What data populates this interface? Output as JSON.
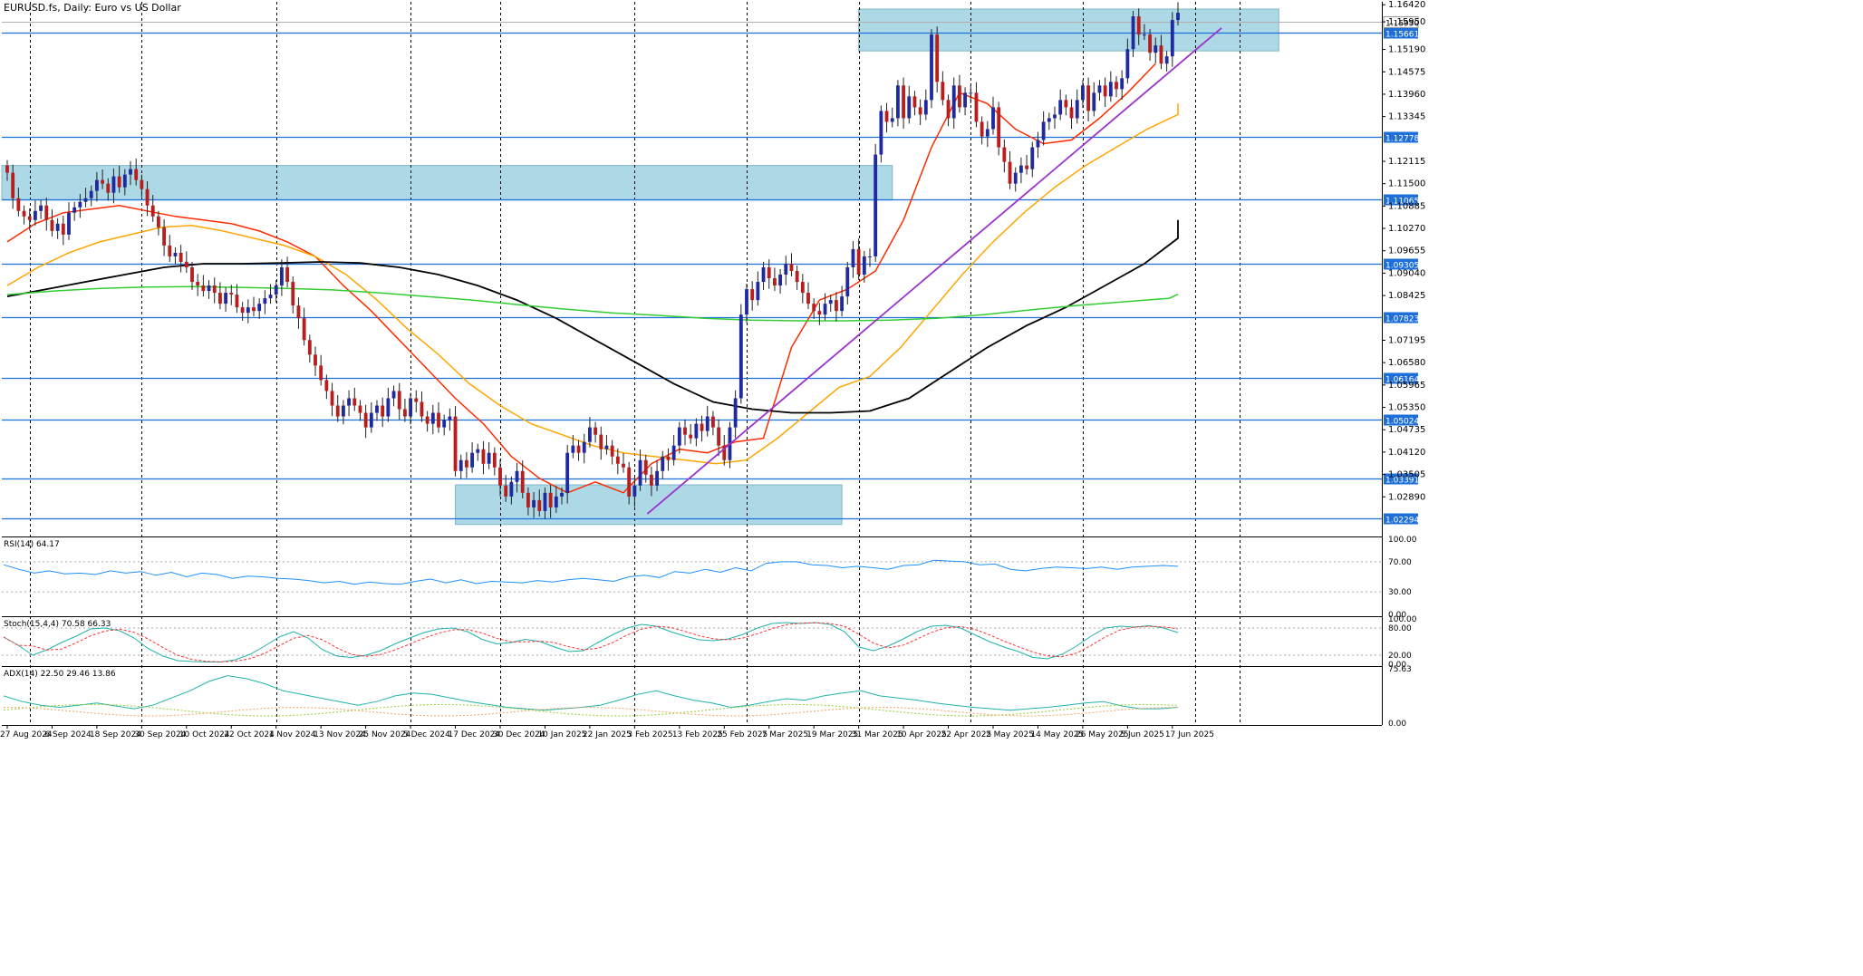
{
  "chart_data": {
    "type": "candlestick",
    "title": "EURUSD.fs, Daily:  Euro vs US Dollar",
    "ylim": [
      1.018,
      1.165
    ],
    "y_ticks": [
      "1.16420",
      "1.15950",
      "1.15190",
      "1.14575",
      "1.13960",
      "1.13345",
      "1.12730",
      "1.12115",
      "1.11500",
      "1.10885",
      "1.10270",
      "1.09655",
      "1.09040",
      "1.08425",
      "1.07810",
      "1.07195",
      "1.06580",
      "1.05965",
      "1.05350",
      "1.04735",
      "1.04120",
      "1.03505",
      "1.02890",
      "1.02294"
    ],
    "x_labels": [
      {
        "text": "27 Aug 2024",
        "idx": 0
      },
      {
        "text": "6 Sep 2024",
        "idx": 8
      },
      {
        "text": "18 Sep 2024",
        "idx": 16
      },
      {
        "text": "30 Sep 2024",
        "idx": 24
      },
      {
        "text": "10 Oct 2024",
        "idx": 32
      },
      {
        "text": "22 Oct 2024",
        "idx": 40
      },
      {
        "text": "1 Nov 2024",
        "idx": 48
      },
      {
        "text": "13 Nov 2024",
        "idx": 56
      },
      {
        "text": "25 Nov 2024",
        "idx": 64
      },
      {
        "text": "5 Dec 2024",
        "idx": 72
      },
      {
        "text": "17 Dec 2024",
        "idx": 80
      },
      {
        "text": "30 Dec 2024",
        "idx": 88
      },
      {
        "text": "10 Jan 2025",
        "idx": 96
      },
      {
        "text": "22 Jan 2025",
        "idx": 104
      },
      {
        "text": "3 Feb 2025",
        "idx": 112
      },
      {
        "text": "13 Feb 2025",
        "idx": 120
      },
      {
        "text": "25 Feb 2025",
        "idx": 128
      },
      {
        "text": "7 Mar 2025",
        "idx": 136
      },
      {
        "text": "19 Mar 2025",
        "idx": 144
      },
      {
        "text": "31 Mar 2025",
        "idx": 152
      },
      {
        "text": "10 Apr 2025",
        "idx": 160
      },
      {
        "text": "22 Apr 2025",
        "idx": 168
      },
      {
        "text": "2 May 2025",
        "idx": 176
      },
      {
        "text": "14 May 2025",
        "idx": 184
      },
      {
        "text": "26 May 2025",
        "idx": 192
      },
      {
        "text": "5 Jun 2025",
        "idx": 200
      },
      {
        "text": "17 Jun 2025",
        "idx": 208
      }
    ],
    "vlines_idx": [
      4,
      24,
      48,
      72,
      88,
      112,
      132,
      152,
      172,
      192,
      212,
      220
    ],
    "closes": [
      1.118,
      1.111,
      1.1075,
      1.106,
      1.105,
      1.1075,
      1.109,
      1.105,
      1.102,
      1.104,
      1.101,
      1.107,
      1.1085,
      1.11,
      1.111,
      1.113,
      1.116,
      1.115,
      1.1125,
      1.117,
      1.114,
      1.1175,
      1.119,
      1.116,
      1.1135,
      1.109,
      1.106,
      1.103,
      1.098,
      1.095,
      1.096,
      1.0935,
      1.092,
      1.088,
      1.087,
      1.0855,
      1.087,
      1.085,
      1.082,
      1.085,
      1.0845,
      1.081,
      1.0795,
      1.081,
      1.08,
      1.082,
      1.0835,
      1.0845,
      1.087,
      1.092,
      1.088,
      1.0815,
      1.078,
      1.072,
      1.068,
      1.065,
      1.061,
      1.058,
      1.054,
      1.051,
      1.054,
      1.056,
      1.054,
      1.052,
      1.048,
      1.052,
      1.054,
      1.051,
      1.056,
      1.058,
      1.053,
      1.051,
      1.056,
      1.055,
      1.051,
      1.049,
      1.052,
      1.048,
      1.05,
      1.051,
      1.036,
      1.039,
      1.037,
      1.041,
      1.042,
      1.038,
      1.041,
      1.037,
      1.032,
      1.029,
      1.033,
      1.036,
      1.03,
      1.026,
      1.028,
      1.025,
      1.03,
      1.026,
      1.029,
      1.03,
      1.041,
      1.043,
      1.041,
      1.044,
      1.048,
      1.046,
      1.042,
      1.043,
      1.04,
      1.038,
      1.037,
      1.029,
      1.032,
      1.039,
      1.035,
      1.032,
      1.036,
      1.04,
      1.039,
      1.043,
      1.048,
      1.046,
      1.045,
      1.049,
      1.047,
      1.051,
      1.048,
      1.043,
      1.039,
      1.048,
      1.056,
      1.079,
      1.086,
      1.083,
      1.088,
      1.092,
      1.089,
      1.087,
      1.09,
      1.093,
      1.091,
      1.088,
      1.085,
      1.082,
      1.08,
      1.079,
      1.082,
      1.083,
      1.08,
      1.084,
      1.092,
      1.097,
      1.09,
      1.095,
      1.095,
      1.123,
      1.135,
      1.132,
      1.133,
      1.142,
      1.133,
      1.139,
      1.136,
      1.134,
      1.138,
      1.156,
      1.143,
      1.138,
      1.133,
      1.142,
      1.136,
      1.14,
      1.14,
      1.132,
      1.128,
      1.13,
      1.136,
      1.125,
      1.121,
      1.115,
      1.118,
      1.12,
      1.119,
      1.125,
      1.127,
      1.132,
      1.133,
      1.134,
      1.138,
      1.136,
      1.133,
      1.138,
      1.142,
      1.135,
      1.14,
      1.142,
      1.139,
      1.143,
      1.141,
      1.144,
      1.152,
      1.161,
      1.156,
      1.156,
      1.151,
      1.153,
      1.148,
      1.15,
      1.16,
      1.162
    ],
    "series": [
      {
        "name": "MA red",
        "color": "#ff2a00",
        "values": [
          1.099,
          1.104,
          1.107,
          1.108,
          1.109,
          1.1075,
          1.106,
          1.105,
          1.104,
          1.102,
          1.099,
          1.095,
          1.087,
          1.08,
          1.072,
          1.064,
          1.056,
          1.049,
          1.04,
          1.034,
          1.03,
          1.033,
          1.03,
          1.038,
          1.042,
          1.041,
          1.044,
          1.045,
          1.07,
          1.083,
          1.086,
          1.091,
          1.105,
          1.125,
          1.14,
          1.137,
          1.13,
          1.126,
          1.127,
          1.133,
          1.14,
          1.148
        ],
        "start_idx": 0,
        "step": 5
      },
      {
        "name": "MA orange",
        "color": "#ffa500",
        "values": [
          1.087,
          1.092,
          1.096,
          1.099,
          1.101,
          1.103,
          1.1035,
          1.102,
          1.1,
          1.098,
          1.095,
          1.09,
          1.083,
          1.075,
          1.068,
          1.06,
          1.054,
          1.049,
          1.046,
          1.043,
          1.041,
          1.04,
          1.039,
          1.038,
          1.039,
          1.045,
          1.052,
          1.059,
          1.062,
          1.07,
          1.08,
          1.09,
          1.099,
          1.107,
          1.114,
          1.12,
          1.125,
          1.13,
          1.134,
          1.137
        ],
        "start_idx": 0,
        "step": 5.5
      },
      {
        "name": "MA black",
        "color": "#000000",
        "values": [
          1.084,
          1.086,
          1.088,
          1.09,
          1.092,
          1.093,
          1.093,
          1.0932,
          1.0935,
          1.0932,
          1.092,
          1.09,
          1.087,
          1.083,
          1.078,
          1.072,
          1.066,
          1.06,
          1.055,
          1.053,
          1.052,
          1.052,
          1.0525,
          1.056,
          1.063,
          1.07,
          1.076,
          1.081,
          1.087,
          1.093,
          1.1,
          1.105
        ],
        "start_idx": 0,
        "step": 7
      },
      {
        "name": "MA green",
        "color": "#32cd32",
        "values": [
          1.0845,
          1.0855,
          1.0862,
          1.0866,
          1.0867,
          1.0865,
          1.0862,
          1.0858,
          1.085,
          1.084,
          1.083,
          1.0817,
          1.0805,
          1.0795,
          1.0788,
          1.078,
          1.0775,
          1.0773,
          1.0773,
          1.0775,
          1.078,
          1.079,
          1.0803,
          1.0815,
          1.0825,
          1.0835,
          1.0846
        ],
        "start_idx": 0,
        "step": 8.3
      }
    ],
    "trendline": {
      "color": "#9933cc",
      "from": [
        1.0242,
        "3 Feb 2025"
      ],
      "to": [
        1.1578,
        "end"
      ]
    },
    "hlines": [
      {
        "value": 1.15661,
        "label": "1.15661"
      },
      {
        "value": 1.12778,
        "label": "1.12778"
      },
      {
        "value": 1.11065,
        "label": "1.11065"
      },
      {
        "value": 1.09305,
        "label": "1.09305"
      },
      {
        "value": 1.07823,
        "label": "1.07823"
      },
      {
        "value": 1.06164,
        "label": "1.06164"
      },
      {
        "value": 1.05024,
        "label": "1.05024"
      },
      {
        "value": 1.03391,
        "label": "1.03391"
      },
      {
        "value": 1.02294,
        "label": "1.02294"
      }
    ],
    "zones": [
      {
        "from_idx": 0,
        "to_idx": 158,
        "top": 1.12,
        "bottom": 1.1105
      },
      {
        "from_idx": 80,
        "to_idx": 149,
        "top": 1.0322,
        "bottom": 1.0213
      },
      {
        "from_idx": 152,
        "to_idx": 227,
        "top": 1.163,
        "bottom": 1.1515
      }
    ],
    "current_price": {
      "value": 1.1595,
      "label": "1.15950"
    },
    "rsi": {
      "label": "RSI(14) 64.17",
      "levels": [
        "100.00",
        "70.00",
        "30.00",
        "0.00"
      ],
      "values": [
        66,
        60,
        55,
        58,
        54,
        55,
        53,
        58,
        55,
        57,
        52,
        56,
        50,
        55,
        53,
        48,
        51,
        50,
        48,
        47,
        45,
        42,
        44,
        40,
        43,
        41,
        40,
        44,
        47,
        42,
        46,
        41,
        44,
        43,
        42,
        45,
        43,
        46,
        48,
        46,
        44,
        50,
        52,
        49,
        57,
        55,
        60,
        56,
        62,
        58,
        68,
        70,
        70,
        66,
        65,
        62,
        64,
        62,
        60,
        65,
        66,
        72,
        71,
        70,
        66,
        67,
        60,
        58,
        61,
        63,
        62,
        61,
        63,
        60,
        63,
        64,
        65,
        64
      ]
    },
    "stoch": {
      "label": "Stoch(15,4,4) 70.58 66.33",
      "levels": [
        "100.00",
        "80.00",
        "20.00",
        "0.00"
      ],
      "main": [
        60,
        42,
        20,
        32,
        48,
        62,
        78,
        80,
        74,
        58,
        34,
        18,
        8,
        6,
        5,
        5,
        10,
        22,
        40,
        60,
        72,
        58,
        32,
        18,
        15,
        20,
        30,
        45,
        58,
        70,
        78,
        80,
        72,
        55,
        45,
        48,
        55,
        50,
        38,
        28,
        30,
        48,
        65,
        80,
        88,
        84,
        72,
        62,
        54,
        52,
        56,
        66,
        80,
        90,
        92,
        90,
        92,
        88,
        72,
        38,
        30,
        40,
        55,
        72,
        84,
        86,
        80,
        65,
        50,
        38,
        28,
        15,
        12,
        22,
        40,
        62,
        80,
        84,
        82,
        85,
        80,
        70
      ]
    },
    "adx": {
      "label": "ADX(14) 22.50 29.46 13.86",
      "levels": [
        "75.63",
        "0.00"
      ],
      "main": [
        38,
        30,
        25,
        22,
        25,
        28,
        24,
        20,
        25,
        35,
        45,
        58,
        66,
        62,
        55,
        45,
        40,
        35,
        30,
        25,
        30,
        38,
        42,
        40,
        35,
        30,
        26,
        22,
        20,
        18,
        20,
        22,
        25,
        32,
        40,
        45,
        38,
        32,
        28,
        22,
        25,
        30,
        34,
        32,
        38,
        42,
        45,
        38,
        35,
        32,
        28,
        25,
        22,
        20,
        18,
        20,
        22,
        25,
        28,
        30,
        24,
        20,
        20,
        22
      ]
    }
  }
}
